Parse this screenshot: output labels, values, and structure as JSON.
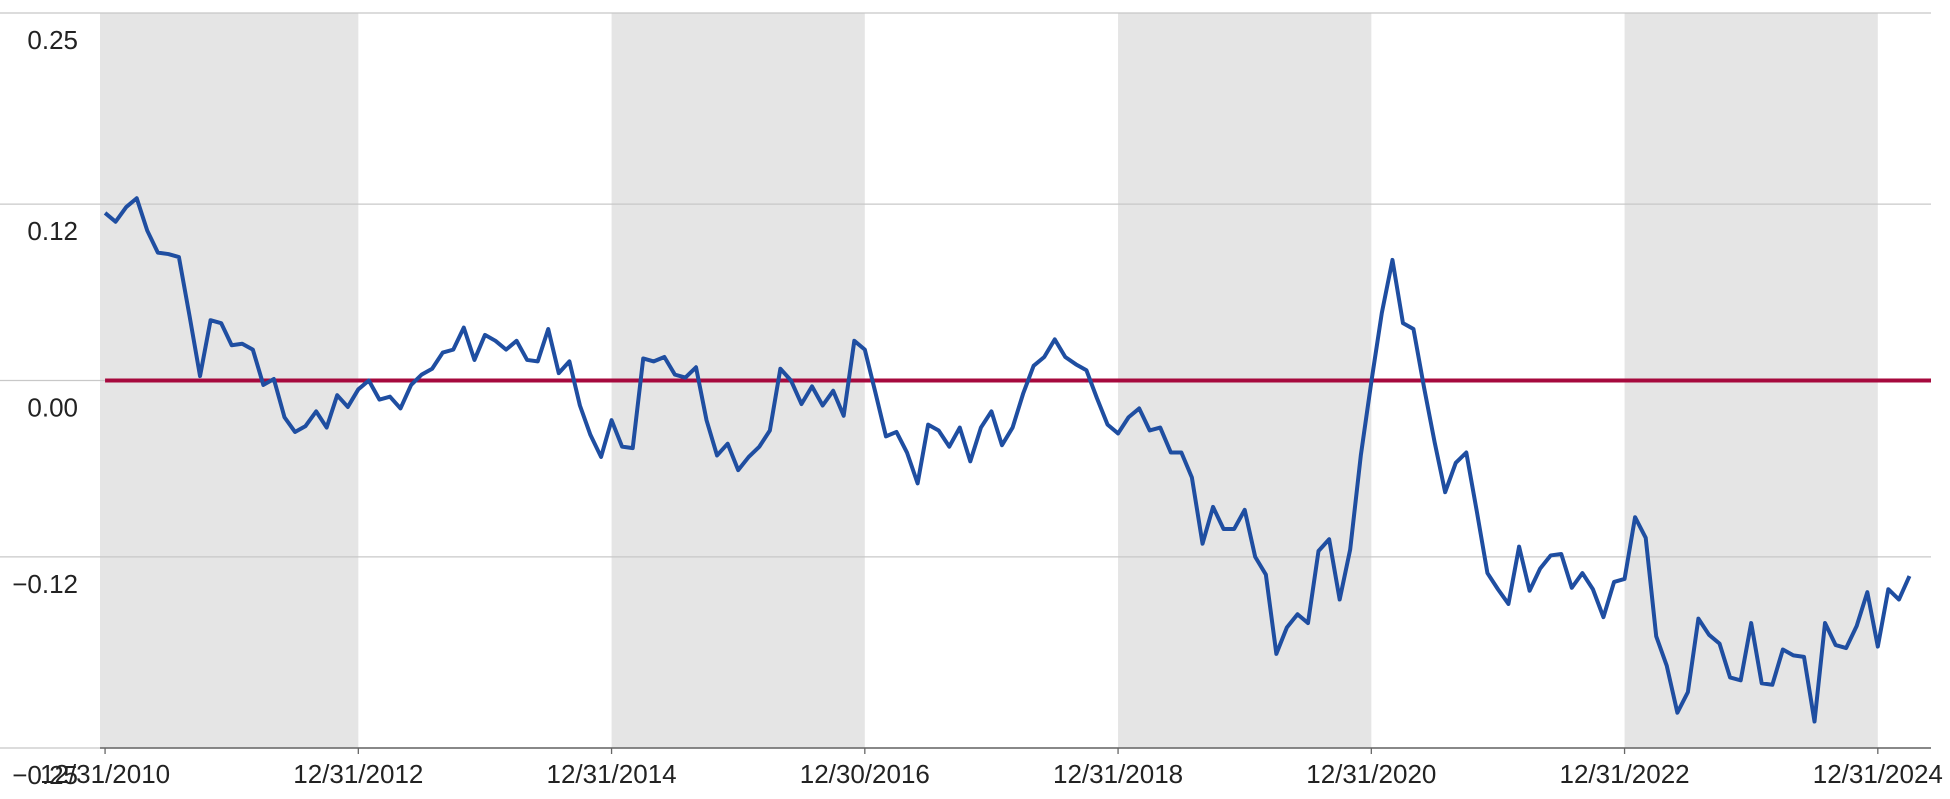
{
  "chart_data": {
    "type": "line",
    "x": [
      2011,
      2011.083,
      2011.167,
      2011.25,
      2011.333,
      2011.417,
      2011.5,
      2011.583,
      2011.667,
      2011.75,
      2011.833,
      2011.917,
      2012,
      2012.083,
      2012.167,
      2012.25,
      2012.333,
      2012.417,
      2012.5,
      2012.583,
      2012.667,
      2012.75,
      2012.833,
      2012.917,
      2013,
      2013.083,
      2013.167,
      2013.25,
      2013.333,
      2013.417,
      2013.5,
      2013.583,
      2013.667,
      2013.75,
      2013.833,
      2013.917,
      2014,
      2014.083,
      2014.167,
      2014.25,
      2014.333,
      2014.417,
      2014.5,
      2014.583,
      2014.667,
      2014.75,
      2014.833,
      2014.917,
      2015,
      2015.083,
      2015.167,
      2015.25,
      2015.333,
      2015.417,
      2015.5,
      2015.583,
      2015.667,
      2015.75,
      2015.833,
      2015.917,
      2016,
      2016.083,
      2016.167,
      2016.25,
      2016.333,
      2016.417,
      2016.5,
      2016.583,
      2016.667,
      2016.75,
      2016.833,
      2016.917,
      2017,
      2017.083,
      2017.167,
      2017.25,
      2017.333,
      2017.417,
      2017.5,
      2017.583,
      2017.667,
      2017.75,
      2017.833,
      2017.917,
      2018,
      2018.083,
      2018.167,
      2018.25,
      2018.333,
      2018.417,
      2018.5,
      2018.583,
      2018.667,
      2018.75,
      2018.833,
      2018.917,
      2019,
      2019.083,
      2019.167,
      2019.25,
      2019.333,
      2019.417,
      2019.5,
      2019.583,
      2019.667,
      2019.75,
      2019.833,
      2019.917,
      2020,
      2020.083,
      2020.167,
      2020.25,
      2020.333,
      2020.417,
      2020.5,
      2020.583,
      2020.667,
      2020.75,
      2020.833,
      2020.917,
      2021,
      2021.083,
      2021.167,
      2021.25,
      2021.333,
      2021.417,
      2021.5,
      2021.583,
      2021.667,
      2021.75,
      2021.833,
      2021.917,
      2022,
      2022.083,
      2022.167,
      2022.25,
      2022.333,
      2022.417,
      2022.5,
      2022.583,
      2022.667,
      2022.75,
      2022.833,
      2022.917,
      2023,
      2023.083,
      2023.167,
      2023.25,
      2023.333,
      2023.417,
      2023.5,
      2023.583,
      2023.667,
      2023.75,
      2023.833,
      2023.917,
      2024,
      2024.083,
      2024.167,
      2024.25,
      2024.333,
      2024.417,
      2024.5,
      2024.583,
      2024.667,
      2024.75,
      2024.833,
      2024.917,
      2025,
      2025.083,
      2025.167,
      2025.25
    ],
    "values": [
      0.114,
      0.108,
      0.118,
      0.124,
      0.102,
      0.087,
      0.086,
      0.084,
      0.044,
      0.003,
      0.041,
      0.039,
      0.024,
      0.025,
      0.021,
      -0.003,
      0.001,
      -0.025,
      -0.035,
      -0.031,
      -0.021,
      -0.032,
      -0.01,
      -0.018,
      -0.006,
      0.0,
      -0.013,
      -0.011,
      -0.019,
      -0.003,
      0.004,
      0.008,
      0.019,
      0.021,
      0.036,
      0.014,
      0.031,
      0.027,
      0.021,
      0.027,
      0.014,
      0.013,
      0.035,
      0.005,
      0.013,
      -0.017,
      -0.037,
      -0.052,
      -0.027,
      -0.045,
      -0.046,
      0.015,
      0.013,
      0.016,
      0.004,
      0.002,
      0.009,
      -0.027,
      -0.051,
      -0.043,
      -0.061,
      -0.052,
      -0.045,
      -0.034,
      0.008,
      0.0,
      -0.016,
      -0.004,
      -0.017,
      -0.007,
      -0.024,
      0.027,
      0.021,
      -0.008,
      -0.038,
      -0.035,
      -0.049,
      -0.07,
      -0.03,
      -0.034,
      -0.045,
      -0.032,
      -0.055,
      -0.032,
      -0.021,
      -0.044,
      -0.032,
      -0.009,
      0.01,
      0.016,
      0.028,
      0.016,
      0.011,
      0.007,
      -0.012,
      -0.03,
      -0.036,
      -0.025,
      -0.019,
      -0.034,
      -0.032,
      -0.049,
      -0.049,
      -0.066,
      -0.111,
      -0.086,
      -0.101,
      -0.101,
      -0.088,
      -0.12,
      -0.132,
      -0.186,
      -0.168,
      -0.159,
      -0.165,
      -0.116,
      -0.108,
      -0.149,
      -0.115,
      -0.051,
      -0.001,
      0.046,
      0.082,
      0.039,
      0.035,
      -0.005,
      -0.042,
      -0.076,
      -0.056,
      -0.049,
      -0.089,
      -0.131,
      -0.142,
      -0.152,
      -0.113,
      -0.143,
      -0.128,
      -0.119,
      -0.118,
      -0.141,
      -0.131,
      -0.142,
      -0.161,
      -0.137,
      -0.135,
      -0.093,
      -0.107,
      -0.174,
      -0.194,
      -0.226,
      -0.212,
      -0.162,
      -0.173,
      -0.179,
      -0.202,
      -0.204,
      -0.165,
      -0.206,
      -0.207,
      -0.183,
      -0.187,
      -0.188,
      -0.232,
      -0.165,
      -0.18,
      -0.182,
      -0.167,
      -0.144,
      -0.181,
      -0.142,
      -0.149,
      -0.133
    ],
    "color": "#1f4ea1",
    "xlim": [
      2010.96,
      2025.42
    ],
    "xticks": [
      {
        "value": 2011,
        "label": "12/31/2010"
      },
      {
        "value": 2013,
        "label": "12/31/2012"
      },
      {
        "value": 2015,
        "label": "12/31/2014"
      },
      {
        "value": 2017,
        "label": "12/30/2016"
      },
      {
        "value": 2019,
        "label": "12/31/2018"
      },
      {
        "value": 2021,
        "label": "12/31/2020"
      },
      {
        "value": 2023,
        "label": "12/31/2022"
      },
      {
        "value": 2025,
        "label": "12/31/2024"
      }
    ],
    "ylim": [
      -0.25,
      0.25
    ],
    "yticks": [
      0.25,
      0.12,
      {
        "value": 0,
        "label": "0.00"
      },
      {
        "value": -0.12,
        "label": "−0.12"
      },
      {
        "value": -0.25,
        "label": "−0.25"
      }
    ],
    "grid": true,
    "shaded_bands": [
      [
        2010.96,
        2013
      ],
      [
        2015,
        2017
      ],
      [
        2019,
        2021
      ],
      [
        2023,
        2025
      ]
    ],
    "band_color": "#e5e5e5",
    "reference_line": {
      "value": 0,
      "color": "#a6093d"
    }
  }
}
